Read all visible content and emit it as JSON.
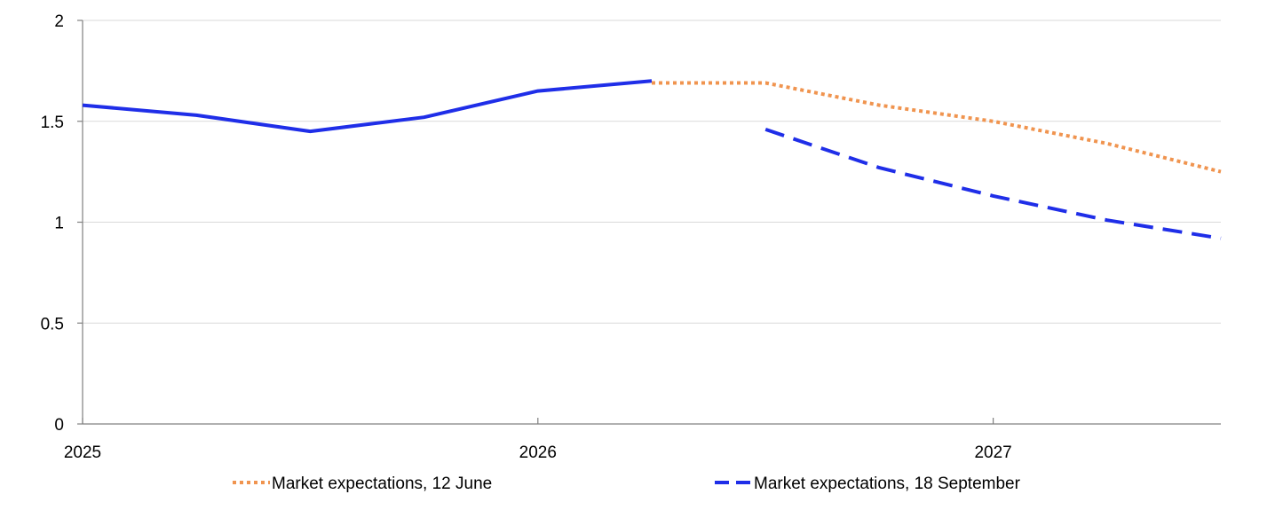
{
  "chart_data": {
    "type": "line",
    "title": "",
    "xlabel": "",
    "ylabel": "",
    "xlim": [
      2025.0,
      2027.5
    ],
    "ylim": [
      0,
      2
    ],
    "x_ticks": [
      2025,
      2026,
      2027
    ],
    "x_tick_labels": [
      "2025",
      "2026",
      "2027"
    ],
    "y_ticks": [
      0,
      0.5,
      1,
      1.5,
      2
    ],
    "y_tick_labels": [
      "0",
      "0.5",
      "1",
      "1.5",
      "2"
    ],
    "grid": "horizontal",
    "legend_position": "bottom",
    "series": [
      {
        "key": "actual",
        "name": "",
        "color": "#1f2ee8",
        "style": "solid",
        "in_legend": false,
        "x": [
          2025.0,
          2025.25,
          2025.5,
          2025.75,
          2026.0,
          2026.25
        ],
        "y": [
          1.58,
          1.53,
          1.45,
          1.52,
          1.65,
          1.7
        ]
      },
      {
        "key": "june",
        "name": "Market expectations, 12 June",
        "color": "#f0944f",
        "style": "dotted",
        "in_legend": true,
        "x": [
          2026.25,
          2026.5,
          2026.75,
          2027.0,
          2027.25,
          2027.5
        ],
        "y": [
          1.69,
          1.69,
          1.58,
          1.5,
          1.39,
          1.25
        ]
      },
      {
        "key": "september",
        "name": "Market expectations, 18 September",
        "color": "#1f2ee8",
        "style": "dashed",
        "in_legend": true,
        "x": [
          2026.5,
          2026.75,
          2027.0,
          2027.25,
          2027.5
        ],
        "y": [
          1.46,
          1.27,
          1.13,
          1.01,
          0.92
        ]
      }
    ]
  }
}
